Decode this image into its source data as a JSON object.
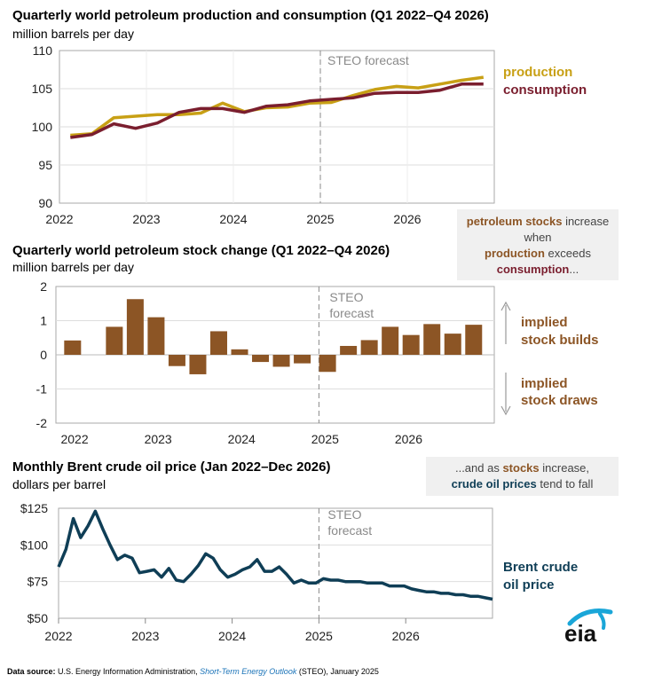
{
  "colors": {
    "production": "#c8a015",
    "consumption": "#7a1e2e",
    "stock": "#8c5525",
    "brent": "#0f3e56",
    "forecast_line": "#8a8a8a",
    "frame": "#aaaaaa"
  },
  "x_tick_labels": [
    "2022",
    "2023",
    "2024",
    "2025",
    "2026"
  ],
  "forecast_label_line1": "STEO",
  "forecast_label_line2": "forecast",
  "forecast_label_full": "STEO forecast",
  "chart_data": [
    {
      "type": "line",
      "title": "Quarterly world petroleum production and consumption (Q1 2022–Q4 2026)",
      "ylabel": "million barrels per day",
      "ylim": [
        90,
        110
      ],
      "yticks": [
        "110",
        "105",
        "100",
        "95",
        "90"
      ],
      "x": [
        "2022Q1",
        "2022Q2",
        "2022Q3",
        "2022Q4",
        "2023Q1",
        "2023Q2",
        "2023Q3",
        "2023Q4",
        "2024Q1",
        "2024Q2",
        "2024Q3",
        "2024Q4",
        "2025Q1",
        "2025Q2",
        "2025Q3",
        "2025Q4",
        "2026Q1",
        "2026Q2",
        "2026Q3",
        "2026Q4"
      ],
      "series": [
        {
          "name": "production",
          "values": [
            98.9,
            99.1,
            101.2,
            101.4,
            101.6,
            101.6,
            101.8,
            103.1,
            102.0,
            102.5,
            102.6,
            103.1,
            103.2,
            104.1,
            104.9,
            105.3,
            105.1,
            105.6,
            106.1,
            106.5
          ]
        },
        {
          "name": "consumption",
          "values": [
            98.6,
            99.0,
            100.4,
            99.8,
            100.5,
            101.9,
            102.4,
            102.4,
            101.9,
            102.7,
            102.9,
            103.4,
            103.6,
            103.8,
            104.4,
            104.5,
            104.5,
            104.8,
            105.6,
            105.6
          ]
        }
      ]
    },
    {
      "type": "bar",
      "title": "Quarterly world petroleum stock change (Q1 2022–Q4 2026)",
      "ylabel": "million barrels per day",
      "ylim": [
        -2,
        2
      ],
      "yticks": [
        "2",
        "1",
        "0",
        "-1",
        "-2"
      ],
      "x": [
        "2022Q1",
        "2022Q2",
        "2022Q3",
        "2022Q4",
        "2023Q1",
        "2023Q2",
        "2023Q3",
        "2023Q4",
        "2024Q1",
        "2024Q2",
        "2024Q3",
        "2024Q4",
        "2025Q1",
        "2025Q2",
        "2025Q3",
        "2025Q4",
        "2026Q1",
        "2026Q2",
        "2026Q3",
        "2026Q4"
      ],
      "values": [
        0.42,
        0.0,
        0.82,
        1.63,
        1.1,
        -0.33,
        -0.57,
        0.69,
        0.16,
        -0.21,
        -0.35,
        -0.25,
        -0.5,
        0.26,
        0.43,
        0.82,
        0.58,
        0.9,
        0.62,
        0.88
      ]
    },
    {
      "type": "line",
      "title": "Monthly Brent crude oil price (Jan 2022–Dec 2026)",
      "ylabel": "dollars per barrel",
      "ylim": [
        50,
        125
      ],
      "yticks": [
        "$125",
        "$100",
        "$75",
        "$50"
      ],
      "x_start": "Jan 2022",
      "x_end": "Dec 2026",
      "series": [
        {
          "name": "Brent crude oil price",
          "values": [
            85,
            97,
            118,
            105,
            113,
            123,
            111,
            100,
            90,
            93,
            91,
            81,
            82,
            83,
            78,
            84,
            76,
            75,
            80,
            86,
            94,
            91,
            83,
            78,
            80,
            83,
            85,
            90,
            82,
            82,
            85,
            80,
            74,
            76,
            74,
            74,
            77,
            76,
            76,
            75,
            75,
            75,
            74,
            74,
            74,
            72,
            72,
            72,
            70,
            69,
            68,
            68,
            67,
            67,
            66,
            66,
            65,
            65,
            64,
            63
          ]
        }
      ]
    }
  ],
  "legend1": {
    "production": "production",
    "consumption": "consumption"
  },
  "legend2": {
    "builds_line1": "implied",
    "builds_line2": "stock builds",
    "draws_line1": "implied",
    "draws_line2": "stock draws"
  },
  "legend3": {
    "line1": "Brent crude",
    "line2": "oil price"
  },
  "note1": {
    "p1": "petroleum stocks",
    "p2": " increase when",
    "p3": "production",
    "p4": " exceeds",
    "p5": "consumption",
    "p6": "..."
  },
  "note2": {
    "p1": "...and as ",
    "p2": "stocks",
    "p3": " increase,",
    "p4": "crude oil prices",
    "p5": " tend to fall"
  },
  "source": {
    "label": "Data source:",
    "text1": " U.S. Energy Information Administration, ",
    "italic": "Short-Term Energy Outlook",
    "text2": " (STEO), January 2025"
  },
  "logo": "eia"
}
